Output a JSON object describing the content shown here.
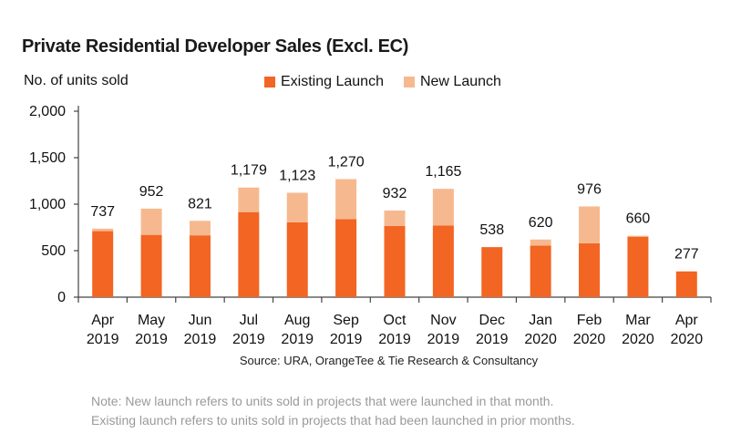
{
  "chart_data": {
    "type": "bar",
    "stacked": true,
    "title": "Private Residential Developer Sales (Excl. EC)",
    "ylabel": "No. of units sold",
    "xlabel": "",
    "ylim": [
      0,
      2000
    ],
    "yticks": [
      0,
      500,
      1000,
      1500,
      2000
    ],
    "ytick_labels": [
      "0",
      "500",
      "1,000",
      "1,500",
      "2,000"
    ],
    "categories": [
      [
        "Apr",
        "2019"
      ],
      [
        "May",
        "2019"
      ],
      [
        "Jun",
        "2019"
      ],
      [
        "Jul",
        "2019"
      ],
      [
        "Aug",
        "2019"
      ],
      [
        "Sep",
        "2019"
      ],
      [
        "Oct",
        "2019"
      ],
      [
        "Nov",
        "2019"
      ],
      [
        "Dec",
        "2019"
      ],
      [
        "Jan",
        "2020"
      ],
      [
        "Feb",
        "2020"
      ],
      [
        "Mar",
        "2020"
      ],
      [
        "Apr",
        "2020"
      ]
    ],
    "series": [
      {
        "name": "Existing Launch",
        "color": "#f26522",
        "values": [
          710,
          670,
          665,
          915,
          805,
          840,
          765,
          770,
          538,
          555,
          580,
          650,
          277
        ]
      },
      {
        "name": "New Launch",
        "color": "#f6b98f",
        "values": [
          27,
          282,
          156,
          264,
          318,
          430,
          167,
          395,
          0,
          65,
          396,
          10,
          0
        ]
      }
    ],
    "totals": [
      737,
      952,
      821,
      1179,
      1123,
      1270,
      932,
      1165,
      538,
      620,
      976,
      660,
      277
    ],
    "total_labels": [
      "737",
      "952",
      "821",
      "1,179",
      "1,123",
      "1,270",
      "932",
      "1,165",
      "538",
      "620",
      "976",
      "660",
      "277"
    ],
    "legend_position": "top-center"
  },
  "source": "Source: URA, OrangeTee & Tie Research & Consultancy",
  "note_lines": [
    "Note: New launch refers to units sold in projects that were launched in that month.",
    "Existing launch refers to units sold in projects that had been launched in prior months."
  ]
}
